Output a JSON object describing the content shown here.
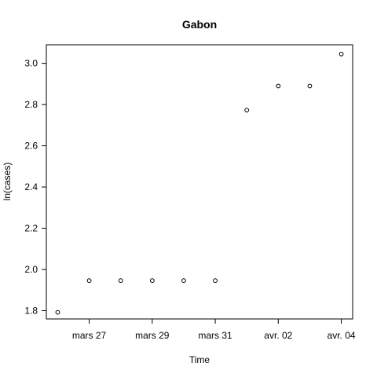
{
  "chart_data": {
    "type": "scatter",
    "title": "Gabon",
    "xlabel": "Time",
    "ylabel": "ln(cases)",
    "x_ticks": [
      "mars 27",
      "mars 29",
      "mars 31",
      "avr. 02",
      "avr. 04"
    ],
    "y_ticks": [
      "1.8",
      "2.0",
      "2.2",
      "2.4",
      "2.6",
      "2.8",
      "3.0"
    ],
    "ylim": [
      1.76,
      3.09
    ],
    "grid": false,
    "series": [
      {
        "points": [
          {
            "x": "2020-03-26",
            "y": 1.792
          },
          {
            "x": "2020-03-27",
            "y": 1.946
          },
          {
            "x": "2020-03-28",
            "y": 1.946
          },
          {
            "x": "2020-03-29",
            "y": 1.946
          },
          {
            "x": "2020-03-30",
            "y": 1.946
          },
          {
            "x": "2020-03-31",
            "y": 1.946
          },
          {
            "x": "2020-04-01",
            "y": 2.773
          },
          {
            "x": "2020-04-02",
            "y": 2.89
          },
          {
            "x": "2020-04-03",
            "y": 2.89
          },
          {
            "x": "2020-04-04",
            "y": 3.045
          }
        ]
      }
    ],
    "colors": {
      "axis": "#000000",
      "marker": "#000000"
    }
  }
}
